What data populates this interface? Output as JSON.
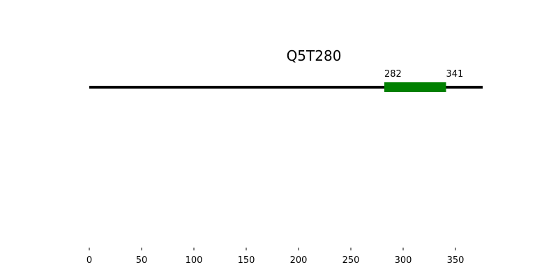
{
  "chart_data": {
    "type": "bar",
    "title": "Q5T280",
    "xlabel": "",
    "ylabel": "",
    "xlim": [
      0,
      376
    ],
    "sequence_length": 376,
    "x_ticks": [
      0,
      50,
      100,
      150,
      200,
      250,
      300,
      350
    ],
    "grid": false,
    "colors": {
      "backbone": "#000000",
      "domain": "#008000"
    },
    "domains": [
      {
        "start": 282,
        "end": 341,
        "start_label": "282",
        "end_label": "341"
      }
    ]
  }
}
